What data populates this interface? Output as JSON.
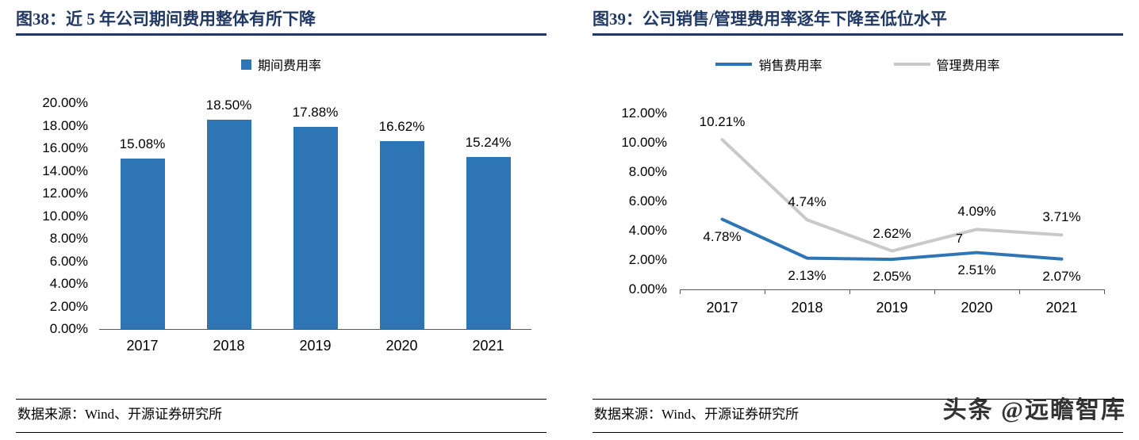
{
  "page": {
    "watermark": "头条 @远瞻智库"
  },
  "chart_data": [
    {
      "type": "bar",
      "title": "图38：近 5 年公司期间费用整体有所下降",
      "source": "数据来源：Wind、开源证券研究所",
      "legend": [
        "期间费用率"
      ],
      "legend_position": "top-center",
      "categories": [
        "2017",
        "2018",
        "2019",
        "2020",
        "2021"
      ],
      "values": [
        15.08,
        18.5,
        17.88,
        16.62,
        15.24
      ],
      "value_labels": [
        "15.08%",
        "18.50%",
        "17.88%",
        "16.62%",
        "15.24%"
      ],
      "ylim": [
        0,
        20
      ],
      "ytick_step": 2,
      "ytick_labels": [
        "0.00%",
        "2.00%",
        "4.00%",
        "6.00%",
        "8.00%",
        "10.00%",
        "12.00%",
        "14.00%",
        "16.00%",
        "18.00%",
        "20.00%"
      ],
      "grid": false,
      "bar_color": "#2E75B6",
      "axis_color": "#595959"
    },
    {
      "type": "line",
      "title": "图39：公司销售/管理费用率逐年下降至低位水平",
      "source": "数据来源：Wind、开源证券研究所",
      "legend_position": "top-center",
      "categories": [
        "2017",
        "2018",
        "2019",
        "2020",
        "2021"
      ],
      "series": [
        {
          "name": "销售费用率",
          "values": [
            4.78,
            2.13,
            2.05,
            2.51,
            2.07
          ],
          "labels": [
            "4.78%",
            "2.13%",
            "2.05%",
            "2.51%",
            "2.07%"
          ],
          "color": "#2E75B6",
          "label_position": "below"
        },
        {
          "name": "管理费用率",
          "values": [
            10.21,
            4.74,
            2.62,
            4.09,
            3.71
          ],
          "labels": [
            "10.21%",
            "4.74%",
            "2.62%",
            "4.09%",
            "3.71%"
          ],
          "color": "#C9C9C9",
          "label_position": "above"
        }
      ],
      "annotations": [
        {
          "text": "7",
          "series": 0,
          "index": 3
        }
      ],
      "ylim": [
        0,
        12
      ],
      "ytick_step": 2,
      "ytick_labels": [
        "0.00%",
        "2.00%",
        "4.00%",
        "6.00%",
        "8.00%",
        "10.00%",
        "12.00%"
      ],
      "grid": false,
      "axis_color": "#595959"
    }
  ]
}
